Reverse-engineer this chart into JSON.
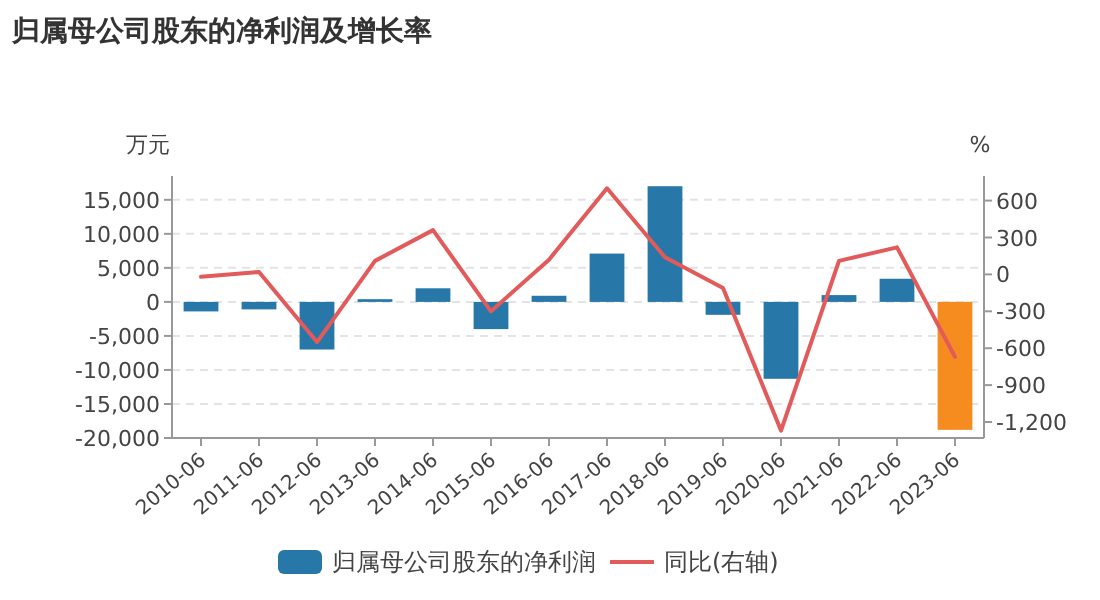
{
  "chart_data": {
    "type": "bar",
    "title": "归属母公司股东的净利润及增长率",
    "ylabel": "万元",
    "y2label": "%",
    "categories": [
      "2010-06",
      "2011-06",
      "2012-06",
      "2013-06",
      "2014-06",
      "2015-06",
      "2016-06",
      "2017-06",
      "2018-06",
      "2019-06",
      "2020-06",
      "2021-06",
      "2022-06",
      "2023-06"
    ],
    "series": [
      {
        "name": "归属母公司股东的净利润",
        "color": "#2778a8",
        "colors": [
          "#2778a8",
          "#2778a8",
          "#2778a8",
          "#2778a8",
          "#2778a8",
          "#2778a8",
          "#2778a8",
          "#2778a8",
          "#2778a8",
          "#2778a8",
          "#2778a8",
          "#2778a8",
          "#2778a8",
          "#f68b1f"
        ],
        "values": [
          -1400,
          -1100,
          -7000,
          400,
          2000,
          -4000,
          900,
          7100,
          17000,
          -1900,
          -11300,
          1000,
          3400,
          -18800
        ]
      },
      {
        "name": "同比(右轴)",
        "type": "line",
        "axis": "y2",
        "color": "#e25a5a",
        "values": [
          -20,
          20,
          -550,
          110,
          360,
          -300,
          120,
          700,
          140,
          -110,
          -1270,
          110,
          220,
          -670
        ]
      }
    ],
    "ylim": [
      -20000,
      18500
    ],
    "yticks": [
      {
        "value": -20000,
        "label": "-20,000"
      },
      {
        "value": -15000,
        "label": "-15,000"
      },
      {
        "value": -10000,
        "label": "-10,000"
      },
      {
        "value": -5000,
        "label": "-5,000"
      },
      0,
      {
        "value": 5000,
        "label": "5,000"
      },
      {
        "value": 10000,
        "label": "10,000"
      },
      {
        "value": 15000,
        "label": "15,000"
      }
    ],
    "y2lim": [
      -1330,
      800
    ],
    "y2ticks": [
      {
        "value": -1200,
        "label": "-1,200"
      },
      -900,
      -600,
      -300,
      0,
      300,
      600
    ],
    "grid": "y",
    "legend": "bottom"
  }
}
